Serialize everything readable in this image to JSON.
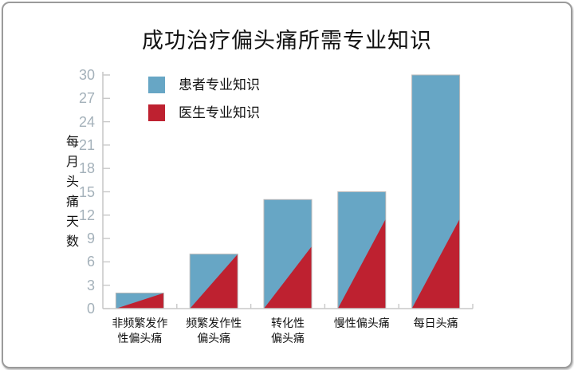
{
  "title": "成功治疗偏头痛所需专业知识",
  "legend": {
    "items": [
      {
        "id": "patient",
        "label": "患者专业知识",
        "color": "#67a6c5"
      },
      {
        "id": "physician",
        "label": "医生专业知识",
        "color": "#be2130"
      }
    ]
  },
  "y_axis": {
    "title": "每月头痛天数",
    "ticks": [
      0,
      3,
      6,
      9,
      12,
      15,
      18,
      21,
      24,
      27,
      30
    ]
  },
  "x_axis": {
    "label_lines": [
      [
        "非频繁发作",
        "性偏头痛"
      ],
      [
        "频繁发作性",
        "偏头痛"
      ],
      [
        "转化性",
        "偏头痛"
      ],
      [
        "慢性偏头痛"
      ],
      [
        "每日头痛"
      ]
    ]
  },
  "chart_data": {
    "type": "bar",
    "title": "成功治疗偏头痛所需专业知识",
    "categories": [
      "非频繁发作性偏头痛",
      "频繁发作性偏头痛",
      "转化性偏头痛",
      "慢性偏头痛",
      "每日头痛"
    ],
    "series": [
      {
        "name": "患者专业知识",
        "shape": "bar",
        "color": "#67a6c5",
        "values": [
          2,
          7,
          14,
          15,
          30
        ]
      },
      {
        "name": "医生专业知识",
        "shape": "right-triangle-wedge",
        "color": "#be2130",
        "values": [
          2,
          7,
          8,
          11.5,
          11.5
        ]
      }
    ],
    "ylabel": "每月头痛天数",
    "xlabel": "",
    "ylim": [
      0,
      30
    ],
    "ytick_step": 3,
    "grid": false,
    "legend_position": "top-left"
  },
  "colors": {
    "axis": "#c9c9c9",
    "tick_label": "#a4b1ba",
    "bar_outline": "#b9b9b9",
    "text": "#111111",
    "frame_border": "#9b9b9b",
    "background": "#ffffff"
  }
}
